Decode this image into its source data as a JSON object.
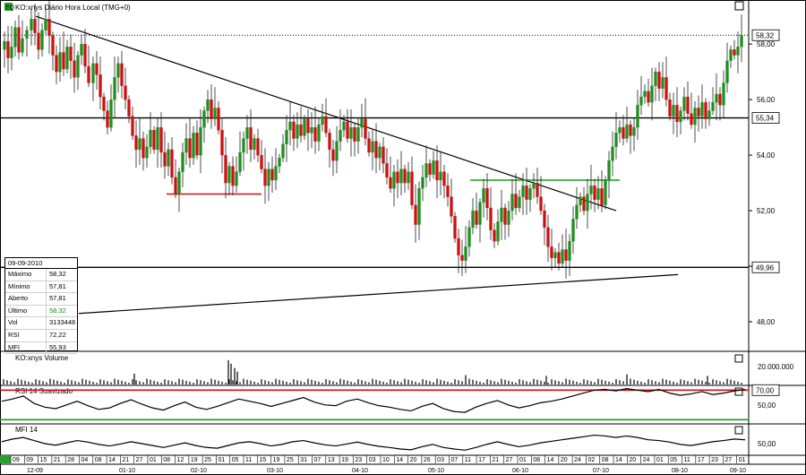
{
  "header": {
    "symbol_badge": "EQ",
    "title": "KO:xnys Diário Hora Local (TMG+0)"
  },
  "colors": {
    "up": "#1f8f1f",
    "down": "#cc1111",
    "red_line": "#d01010",
    "green_line": "#1f9a1f",
    "bg": "#ffffff"
  },
  "chart_data": [
    {
      "type": "candlestick",
      "title": "KO:xnys Diário Hora Local (TMG+0)",
      "ylim": [
        47,
        59.2
      ],
      "yticks": [
        "58,00",
        "56,00",
        "54,00",
        "52,00",
        "50,00",
        "48,00"
      ],
      "ytick_values": [
        58,
        56,
        54,
        52,
        50,
        48
      ],
      "price_labels": [
        {
          "value": 58.32,
          "text": "58,32"
        },
        {
          "value": 55.34,
          "text": "55,34"
        },
        {
          "value": 49.96,
          "text": "49,96"
        }
      ],
      "close_path": [
        [
          0,
          57.8
        ],
        [
          5,
          58.1
        ],
        [
          9,
          57.5
        ],
        [
          13,
          57.9
        ],
        [
          17,
          58.6
        ],
        [
          21,
          57.7
        ],
        [
          25,
          58.2
        ],
        [
          30,
          58.5
        ],
        [
          35,
          58.9
        ],
        [
          39,
          58.4
        ],
        [
          43,
          57.8
        ],
        [
          47,
          58.5
        ],
        [
          51,
          58.9
        ],
        [
          55,
          58.3
        ],
        [
          59,
          57.6
        ],
        [
          63,
          57.0
        ],
        [
          67,
          57.7
        ],
        [
          71,
          57.1
        ],
        [
          75,
          57.9
        ],
        [
          79,
          57.4
        ],
        [
          83,
          56.8
        ],
        [
          87,
          57.6
        ],
        [
          91,
          58.0
        ],
        [
          95,
          57.2
        ],
        [
          99,
          56.6
        ],
        [
          104,
          57.3
        ],
        [
          108,
          56.9
        ],
        [
          112,
          56.1
        ],
        [
          116,
          55.6
        ],
        [
          120,
          55.0
        ],
        [
          124,
          56.0
        ],
        [
          128,
          56.8
        ],
        [
          132,
          57.3
        ],
        [
          136,
          56.5
        ],
        [
          140,
          56.0
        ],
        [
          144,
          55.4
        ],
        [
          148,
          54.7
        ],
        [
          152,
          54.2
        ],
        [
          156,
          54.6
        ],
        [
          160,
          53.9
        ],
        [
          164,
          54.3
        ],
        [
          168,
          54.9
        ],
        [
          172,
          54.2
        ],
        [
          176,
          55.0
        ],
        [
          180,
          54.1
        ],
        [
          184,
          53.6
        ],
        [
          188,
          54.2
        ],
        [
          192,
          53.2
        ],
        [
          196,
          52.6
        ],
        [
          200,
          53.4
        ],
        [
          204,
          54.1
        ],
        [
          208,
          54.6
        ],
        [
          212,
          53.9
        ],
        [
          216,
          54.8
        ],
        [
          220,
          54.0
        ],
        [
          224,
          55.0
        ],
        [
          228,
          55.6
        ],
        [
          232,
          56.0
        ],
        [
          236,
          55.3
        ],
        [
          240,
          55.7
        ],
        [
          244,
          54.9
        ],
        [
          248,
          54.0
        ],
        [
          252,
          53.0
        ],
        [
          256,
          53.6
        ],
        [
          260,
          52.9
        ],
        [
          264,
          53.4
        ],
        [
          268,
          54.1
        ],
        [
          272,
          54.6
        ],
        [
          276,
          55.0
        ],
        [
          280,
          54.2
        ],
        [
          284,
          54.6
        ],
        [
          288,
          54.0
        ],
        [
          292,
          53.5
        ],
        [
          296,
          52.9
        ],
        [
          300,
          53.5
        ],
        [
          304,
          53.1
        ],
        [
          308,
          53.6
        ],
        [
          312,
          53.9
        ],
        [
          316,
          54.4
        ],
        [
          320,
          54.9
        ],
        [
          324,
          55.2
        ],
        [
          328,
          54.6
        ],
        [
          332,
          55.1
        ],
        [
          336,
          54.7
        ],
        [
          340,
          55.3
        ],
        [
          344,
          54.8
        ],
        [
          348,
          55.0
        ],
        [
          352,
          54.5
        ],
        [
          356,
          55.1
        ],
        [
          360,
          55.4
        ],
        [
          364,
          54.8
        ],
        [
          368,
          54.2
        ],
        [
          372,
          53.8
        ],
        [
          376,
          54.5
        ],
        [
          380,
          54.9
        ],
        [
          384,
          55.2
        ],
        [
          388,
          54.6
        ],
        [
          392,
          55.0
        ],
        [
          396,
          54.5
        ],
        [
          400,
          55.0
        ],
        [
          404,
          55.3
        ],
        [
          408,
          54.6
        ],
        [
          412,
          54.1
        ],
        [
          416,
          54.5
        ],
        [
          420,
          53.9
        ],
        [
          424,
          54.3
        ],
        [
          428,
          53.7
        ],
        [
          432,
          53.2
        ],
        [
          436,
          52.8
        ],
        [
          440,
          53.4
        ],
        [
          444,
          53.0
        ],
        [
          448,
          53.5
        ],
        [
          452,
          53.0
        ],
        [
          456,
          53.4
        ],
        [
          460,
          52.2
        ],
        [
          464,
          51.5
        ],
        [
          468,
          52.8
        ],
        [
          472,
          53.2
        ],
        [
          476,
          53.7
        ],
        [
          480,
          53.3
        ],
        [
          484,
          53.8
        ],
        [
          488,
          53.1
        ],
        [
          492,
          53.4
        ],
        [
          496,
          52.9
        ],
        [
          500,
          52.5
        ],
        [
          504,
          51.8
        ],
        [
          508,
          51.0
        ],
        [
          512,
          50.4
        ],
        [
          516,
          50.2
        ],
        [
          520,
          50.7
        ],
        [
          524,
          51.4
        ],
        [
          528,
          52.0
        ],
        [
          532,
          51.5
        ],
        [
          536,
          52.3
        ],
        [
          540,
          52.8
        ],
        [
          544,
          52.1
        ],
        [
          548,
          51.3
        ],
        [
          552,
          50.9
        ],
        [
          556,
          51.6
        ],
        [
          560,
          52.1
        ],
        [
          564,
          51.5
        ],
        [
          568,
          52.0
        ],
        [
          572,
          52.6
        ],
        [
          576,
          52.1
        ],
        [
          580,
          52.5
        ],
        [
          584,
          52.9
        ],
        [
          588,
          52.4
        ],
        [
          592,
          52.8
        ],
        [
          596,
          53.0
        ],
        [
          600,
          52.5
        ],
        [
          604,
          52.0
        ],
        [
          608,
          51.4
        ],
        [
          612,
          50.7
        ],
        [
          616,
          50.3
        ],
        [
          620,
          50.5
        ],
        [
          624,
          50.1
        ],
        [
          628,
          50.6
        ],
        [
          632,
          50.2
        ],
        [
          636,
          50.9
        ],
        [
          640,
          51.7
        ],
        [
          644,
          52.2
        ],
        [
          648,
          52.5
        ],
        [
          652,
          52.0
        ],
        [
          656,
          52.6
        ],
        [
          660,
          52.9
        ],
        [
          664,
          52.4
        ],
        [
          668,
          52.8
        ],
        [
          672,
          52.2
        ],
        [
          676,
          53.1
        ],
        [
          680,
          53.8
        ],
        [
          684,
          54.3
        ],
        [
          688,
          54.8
        ],
        [
          692,
          55.0
        ],
        [
          696,
          54.6
        ],
        [
          700,
          55.1
        ],
        [
          704,
          54.7
        ],
        [
          708,
          55.0
        ],
        [
          712,
          55.8
        ],
        [
          716,
          56.1
        ],
        [
          720,
          56.3
        ],
        [
          724,
          55.9
        ],
        [
          728,
          56.5
        ],
        [
          732,
          57.0
        ],
        [
          736,
          56.4
        ],
        [
          740,
          56.8
        ],
        [
          744,
          56.0
        ],
        [
          748,
          55.4
        ],
        [
          752,
          55.8
        ],
        [
          756,
          55.2
        ],
        [
          760,
          55.6
        ],
        [
          764,
          56.1
        ],
        [
          768,
          55.5
        ],
        [
          772,
          55.1
        ],
        [
          776,
          55.7
        ],
        [
          780,
          55.4
        ],
        [
          784,
          55.9
        ],
        [
          788,
          55.3
        ],
        [
          792,
          55.6
        ],
        [
          796,
          55.9
        ],
        [
          800,
          56.2
        ],
        [
          804,
          55.8
        ],
        [
          808,
          56.6
        ],
        [
          812,
          57.4
        ],
        [
          816,
          57.8
        ],
        [
          820,
          57.6
        ],
        [
          824,
          57.9
        ],
        [
          828,
          58.32
        ]
      ],
      "trendlines": [
        {
          "color": "black",
          "from": [
            40,
            59.0
          ],
          "to": [
            688,
            52.0
          ]
        },
        {
          "color": "black",
          "from": [
            88,
            48.3
          ],
          "to": [
            757,
            49.7
          ]
        },
        {
          "color": "red",
          "from": [
            186,
            52.6
          ],
          "to": [
            292,
            52.6
          ]
        },
        {
          "color": "green",
          "from": [
            525,
            53.1
          ],
          "to": [
            692,
            53.1
          ]
        },
        {
          "color": "black",
          "from": [
            0,
            55.34
          ],
          "to": [
            836,
            55.34
          ]
        },
        {
          "color": "black",
          "from": [
            0,
            49.96
          ],
          "to": [
            836,
            49.96
          ]
        }
      ]
    },
    {
      "type": "bar",
      "title": "KO:xnys Volume",
      "yticks": [
        "20.000.000"
      ],
      "spikes": [
        [
          255,
          3.4
        ],
        [
          258,
          2.9
        ],
        [
          262,
          2.3
        ],
        [
          265,
          1.8
        ],
        [
          150,
          1.5
        ],
        [
          520,
          1.3
        ],
        [
          610,
          1.2
        ],
        [
          700,
          1.4
        ],
        [
          790,
          1.2
        ]
      ]
    },
    {
      "type": "line",
      "title": "RSI 14 Suavizado",
      "yticks": [
        "70,00",
        "50,00"
      ],
      "levels": {
        "upper": 70,
        "lower": 30
      },
      "ylim": [
        28,
        74
      ],
      "values": [
        55,
        58,
        62,
        52,
        47,
        45,
        50,
        55,
        49,
        44,
        46,
        52,
        57,
        51,
        46,
        43,
        49,
        54,
        47,
        44,
        48,
        53,
        58,
        55,
        52,
        48,
        52,
        56,
        60,
        54,
        50,
        49,
        55,
        58,
        53,
        49,
        47,
        44,
        42,
        48,
        52,
        45,
        41,
        40,
        47,
        52,
        56,
        50,
        46,
        49,
        53,
        55,
        58,
        62,
        66,
        70,
        71,
        69,
        72,
        70,
        68,
        71,
        66,
        63,
        65,
        68,
        64,
        66,
        69,
        71
      ]
    },
    {
      "type": "line",
      "title": "MFI 14",
      "yticks": [
        "50,00"
      ],
      "ylim": [
        15,
        85
      ],
      "values": [
        55,
        62,
        66,
        58,
        50,
        46,
        52,
        58,
        54,
        48,
        44,
        49,
        55,
        50,
        45,
        40,
        46,
        52,
        45,
        40,
        38,
        45,
        52,
        55,
        50,
        44,
        48,
        55,
        58,
        52,
        47,
        44,
        49,
        54,
        48,
        43,
        40,
        36,
        34,
        42,
        48,
        40,
        36,
        33,
        40,
        48,
        55,
        48,
        42,
        46,
        52,
        56,
        60,
        64,
        68,
        72,
        70,
        66,
        70,
        66,
        60,
        58,
        54,
        48,
        45,
        50,
        55,
        58,
        62,
        60
      ]
    }
  ],
  "xaxis": {
    "month_labels": [
      "12-09",
      "01-10",
      "02-10",
      "03-10",
      "04-10",
      "05-10",
      "06-10",
      "07-10",
      "08-10",
      "09-10"
    ],
    "day_labels": [
      "09",
      "09",
      "15",
      "21",
      "28",
      "04",
      "08",
      "14",
      "21",
      "27",
      "01",
      "08",
      "12",
      "19",
      "25",
      "01",
      "05",
      "11",
      "15",
      "19",
      "25",
      "31",
      "07",
      "13",
      "19",
      "23",
      "03",
      "10",
      "14",
      "20",
      "26",
      "03",
      "07",
      "11",
      "17",
      "21",
      "27",
      "01",
      "08",
      "14",
      "20",
      "24",
      "02",
      "08",
      "14",
      "20",
      "24",
      "01",
      "05",
      "11",
      "17",
      "23",
      "27",
      "01"
    ]
  },
  "info_box": {
    "date": "09-09-2010",
    "rows": [
      {
        "key": "Máximo",
        "value": "58,32"
      },
      {
        "key": "Mínimo",
        "value": "57,81"
      },
      {
        "key": "Aberto",
        "value": "57,81"
      },
      {
        "key": "Último",
        "value": "58,32"
      },
      {
        "key": "Vol",
        "value": "3133448"
      },
      {
        "key": "RSI",
        "value": "72,22"
      },
      {
        "key": "MFI",
        "value": "55,93"
      }
    ]
  }
}
